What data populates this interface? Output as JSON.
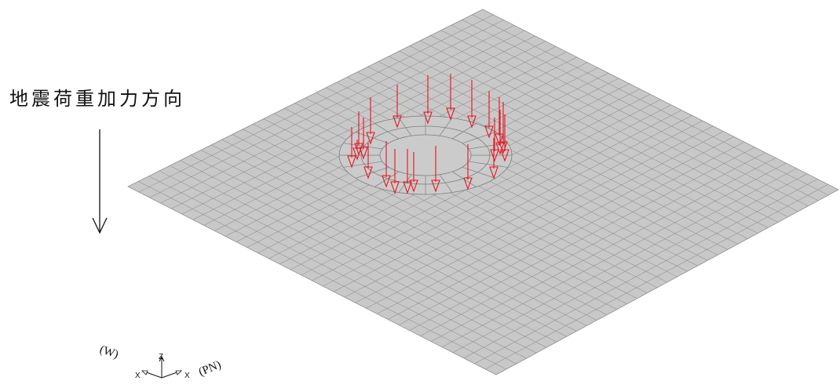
{
  "title": "地震荷重加力方向",
  "axis": {
    "label_w": "(W)",
    "label_pn": "(PN)",
    "x_letter": "X",
    "z_letter": "Z"
  },
  "colors": {
    "plate_fill": "#c8c8c8",
    "mesh_line": "#8f8f8f",
    "load_arrow": "#e8141e",
    "ink": "#111111"
  }
}
